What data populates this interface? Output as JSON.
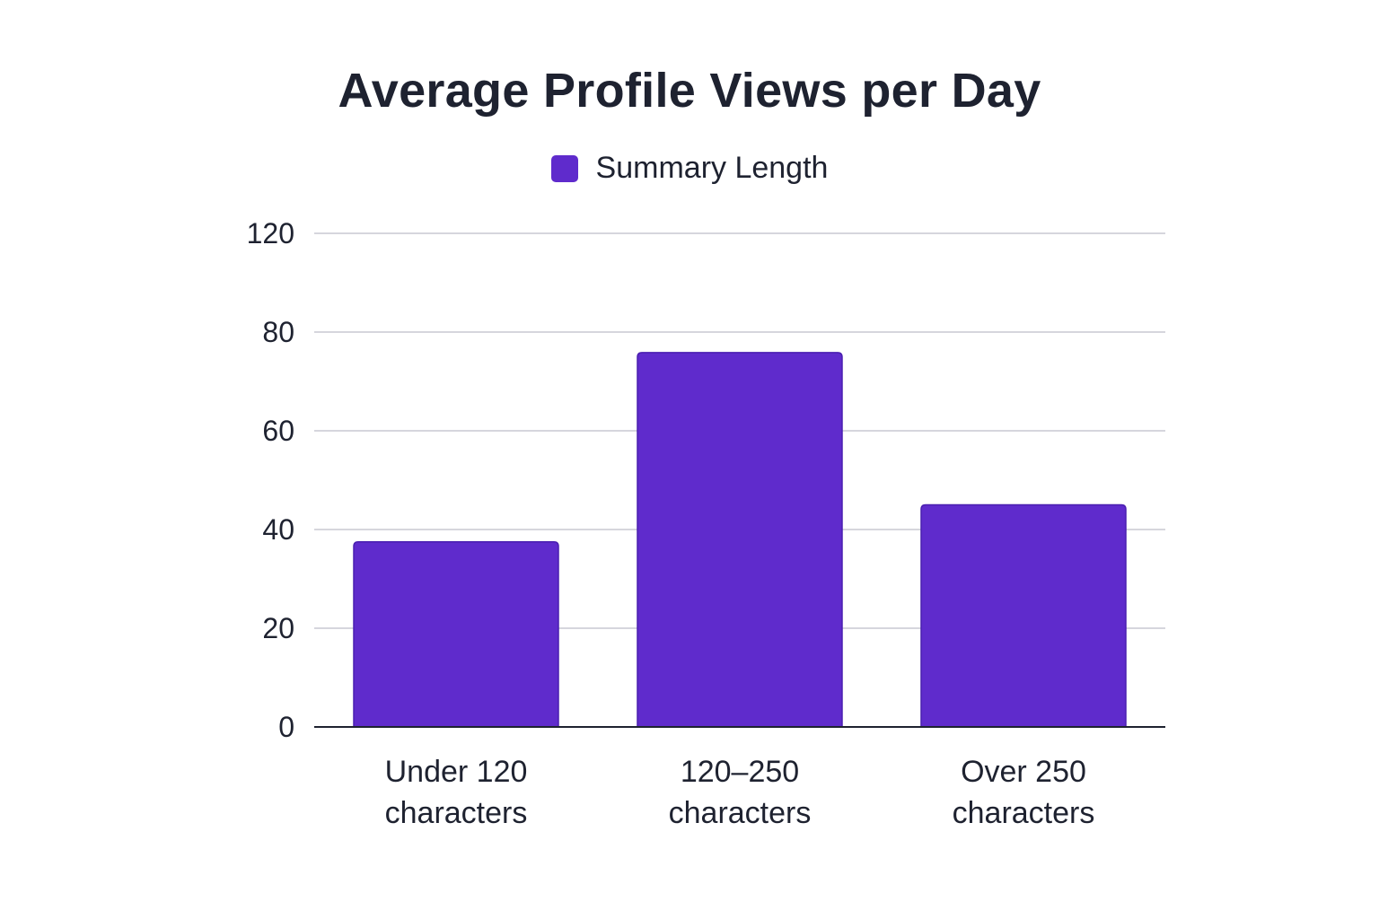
{
  "colors": {
    "bar": "#5f2bcc",
    "bar_edge": "#4a1fb0",
    "grid": "#c9c9d2",
    "axis": "#1e2230"
  },
  "chart_data": {
    "type": "bar",
    "title": "Average Profile Views per Day",
    "xlabel": "",
    "ylabel": "",
    "categories": [
      [
        "Under 120",
        "characters"
      ],
      [
        "120–250",
        "characters"
      ],
      [
        "Over 250",
        "characters"
      ]
    ],
    "series": [
      {
        "name": "Summary Length",
        "values": [
          45,
          91,
          54
        ]
      }
    ],
    "yticks": [
      "0",
      "20",
      "40",
      "60",
      "80",
      "120"
    ],
    "ylim": [
      0,
      120
    ],
    "grid": true,
    "legend": "top-center"
  }
}
